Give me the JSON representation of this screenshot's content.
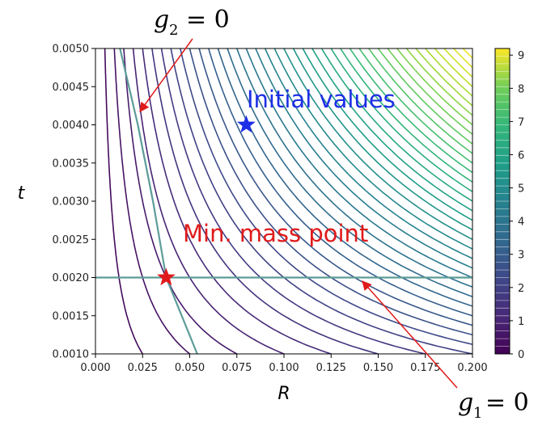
{
  "chart_data": {
    "type": "contour",
    "xlabel": "R",
    "ylabel": "t",
    "xlim": [
      0.0,
      0.2
    ],
    "ylim": [
      0.001,
      0.005
    ],
    "x_ticks": [
      "0.000",
      "0.025",
      "0.050",
      "0.075",
      "0.100",
      "0.125",
      "0.150",
      "0.175",
      "0.200"
    ],
    "y_ticks": [
      "0.0010",
      "0.0015",
      "0.0020",
      "0.0025",
      "0.0030",
      "0.0035",
      "0.0040",
      "0.0045",
      "0.0050"
    ],
    "colorbar": {
      "colormap": "viridis",
      "range": [
        0,
        9.2
      ],
      "ticks": [
        "0",
        "1",
        "2",
        "3",
        "4",
        "5",
        "6",
        "7",
        "8",
        "9"
      ]
    },
    "contour_function": "mass proportional to R*t",
    "contour_level_count": 40,
    "constraint_curves": [
      {
        "name": "g1",
        "type": "horizontal",
        "y": 0.002,
        "color": "#5d9c98"
      },
      {
        "name": "g2",
        "type": "curve",
        "points": [
          [
            0.013,
            0.005
          ],
          [
            0.0225,
            0.004
          ],
          [
            0.0305,
            0.003
          ],
          [
            0.0375,
            0.002
          ],
          [
            0.054,
            0.001
          ]
        ],
        "color": "#5d9c98"
      }
    ],
    "points": [
      {
        "label": "Initial values",
        "x": 0.08,
        "y": 0.004,
        "color": "#1e2ee6",
        "marker": "star"
      },
      {
        "label": "Min. mass point",
        "x": 0.0375,
        "y": 0.002,
        "color": "#e01b1b",
        "marker": "star"
      }
    ],
    "annotations": [
      {
        "base": "g",
        "sub": "2",
        "rel": "= 0",
        "target": [
          0.0235,
          0.00415
        ]
      },
      {
        "base": "g",
        "sub": "1",
        "rel": "= 0",
        "target": [
          0.142,
          0.00195
        ]
      }
    ],
    "callout_labels": {
      "initial": "Initial values",
      "minmass": "Min. mass point"
    },
    "arrow_color": "#e01b1b"
  }
}
